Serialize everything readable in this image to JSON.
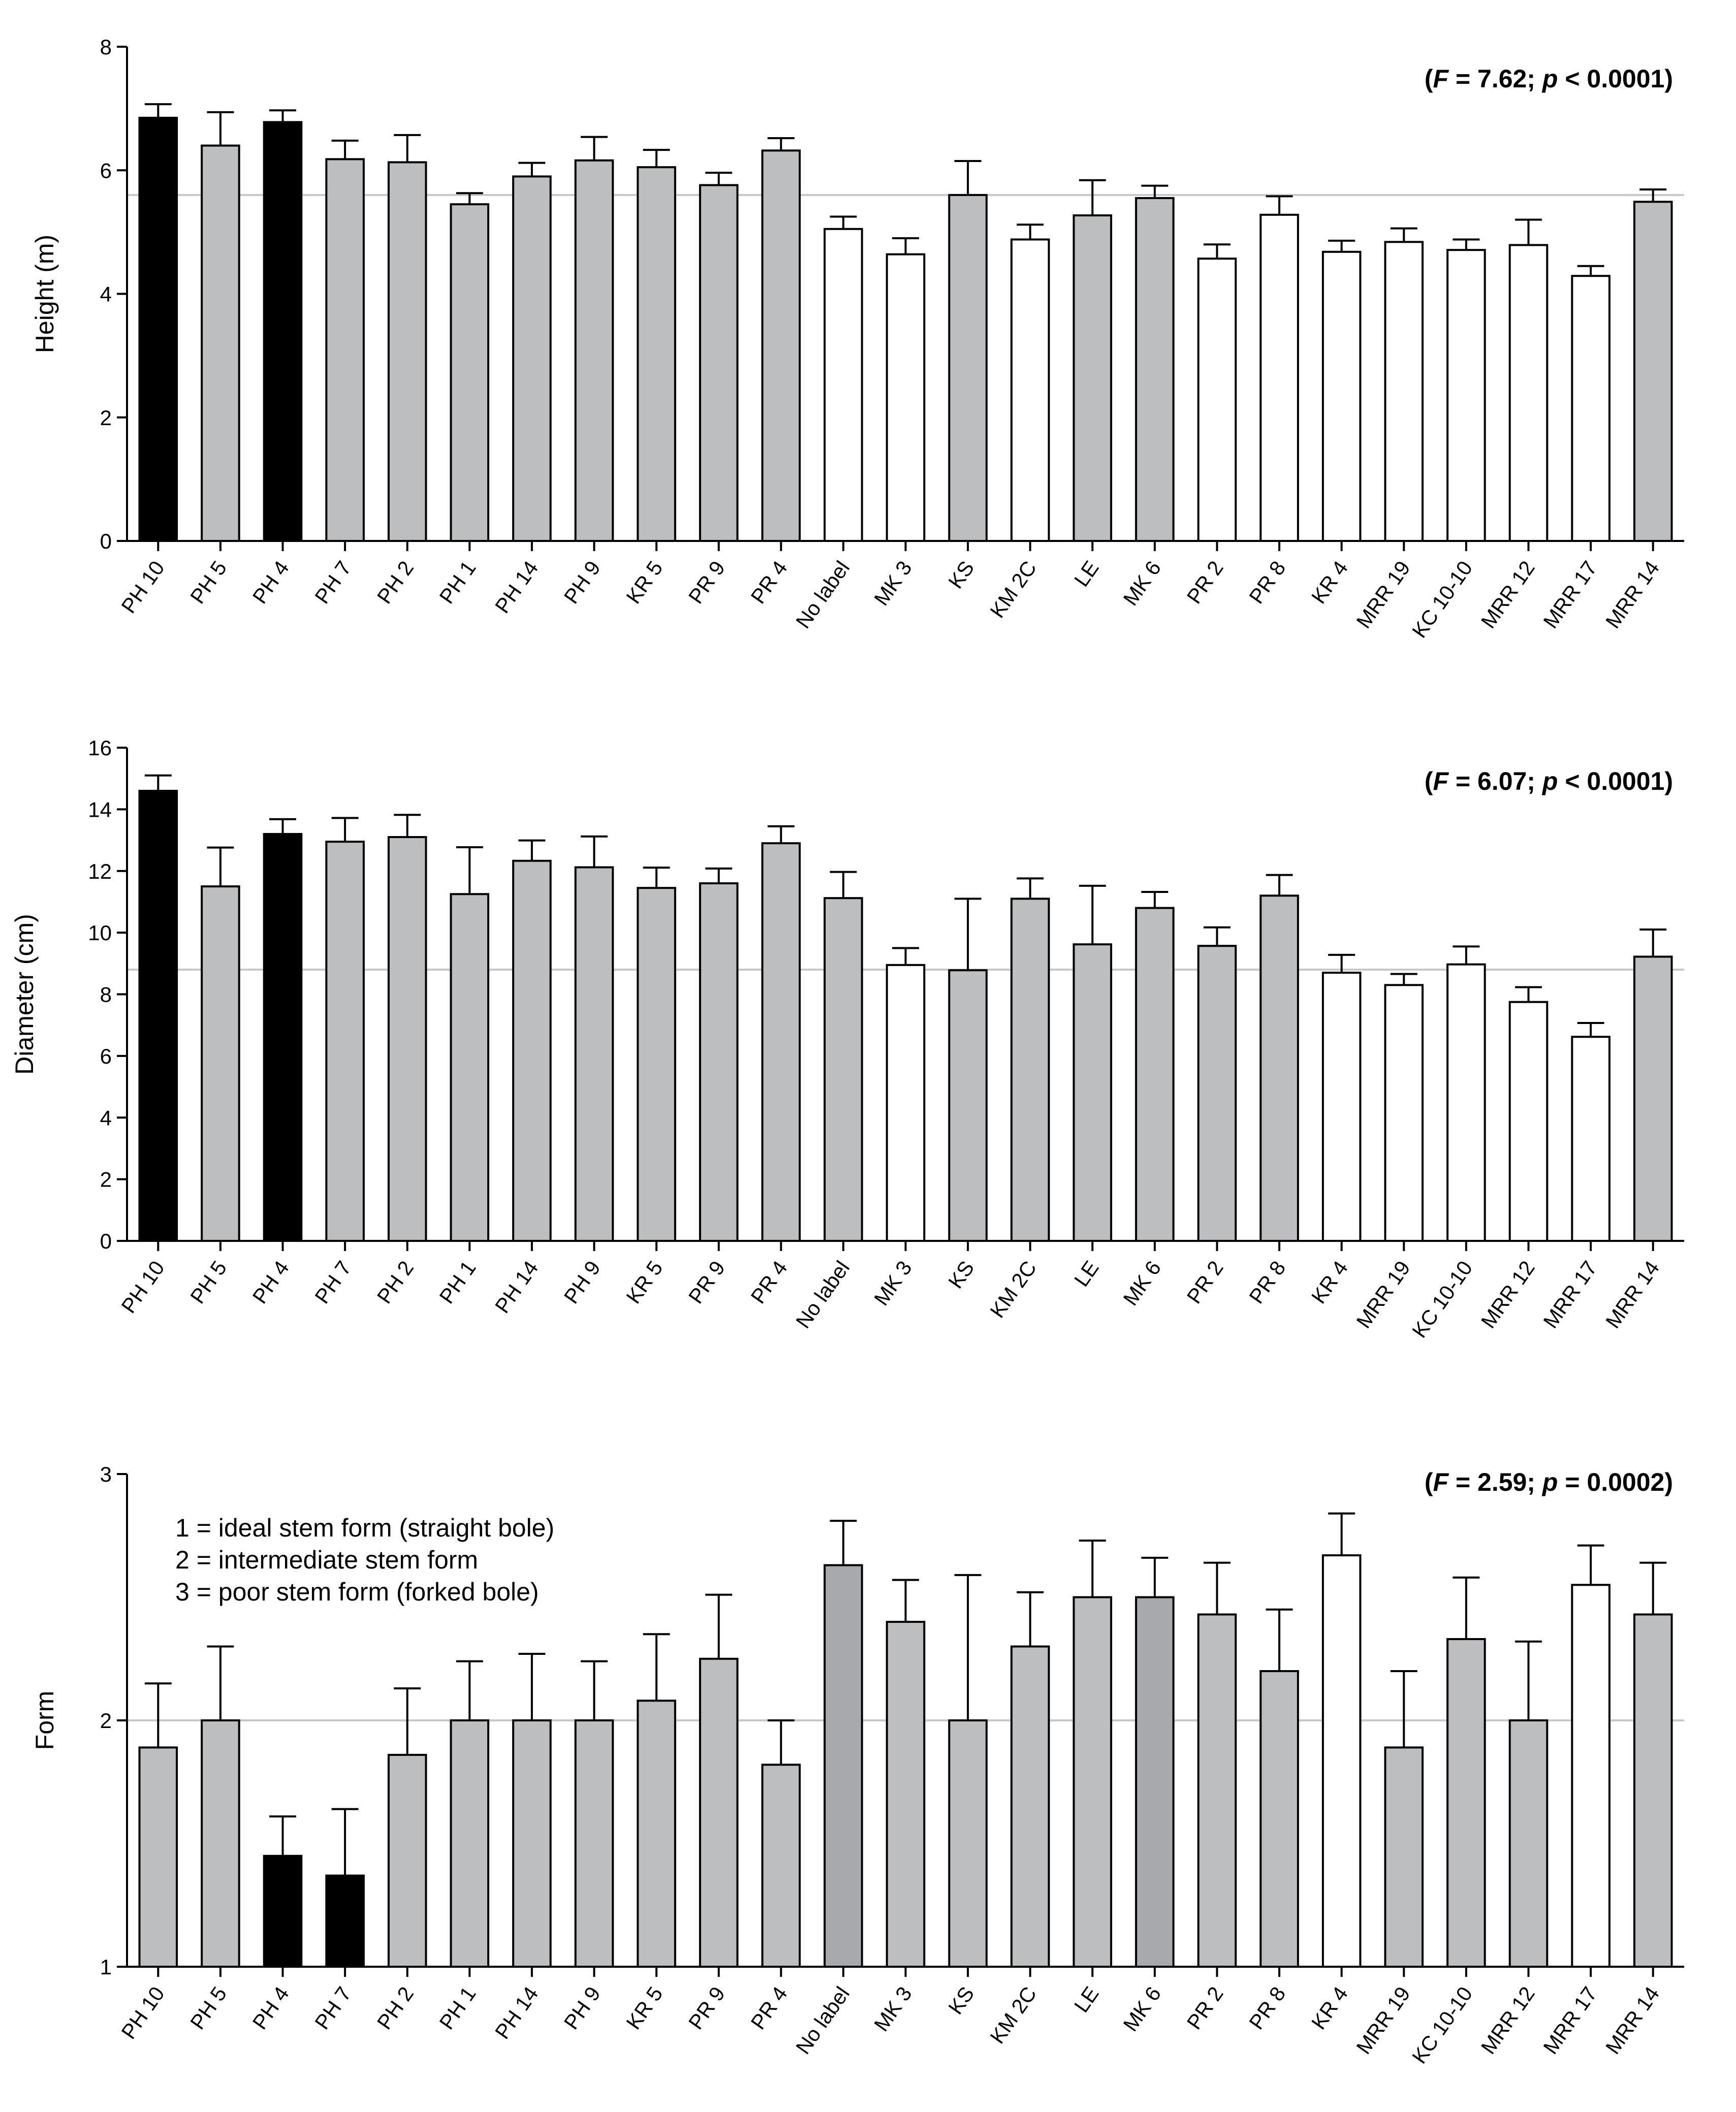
{
  "colors": {
    "black": "#000000",
    "gray": "#bcbec0",
    "dark_gray": "#a7a9ac",
    "white": "#ffffff",
    "ref_line": "#c8c8c8"
  },
  "chart_data": [
    {
      "type": "bar",
      "title": "",
      "xlabel": "",
      "ylabel": "Height (m)",
      "ylim": [
        0,
        8
      ],
      "yticks": [
        "0",
        "2",
        "4",
        "6",
        "8"
      ],
      "reference_line": 5.6,
      "stat_prefix": "(",
      "stat_f_symbol": "F",
      "stat_f_value": " = 7.62; ",
      "stat_p_symbol": "p",
      "stat_p_value": " < 0.0001)",
      "categories": [
        "PH 10",
        "PH 5",
        "PH 4",
        "PH 7",
        "PH 2",
        "PH 1",
        "PH 14",
        "PH 9",
        "KR 5",
        "PR 9",
        "PR 4",
        "No label",
        "MK 3",
        "KS",
        "KM 2C",
        "LE",
        "MK 6",
        "PR 2",
        "PR 8",
        "KR 4",
        "MRR 19",
        "KC 10-10",
        "MRR 12",
        "MRR 17",
        "MRR 14"
      ],
      "values": [
        6.85,
        6.4,
        6.78,
        6.18,
        6.13,
        5.45,
        5.9,
        6.16,
        6.05,
        5.76,
        6.32,
        5.05,
        4.64,
        5.6,
        4.88,
        5.27,
        5.55,
        4.57,
        5.28,
        4.68,
        4.84,
        4.71,
        4.79,
        4.29,
        5.49
      ],
      "errors": [
        0.22,
        0.54,
        0.19,
        0.3,
        0.44,
        0.18,
        0.22,
        0.38,
        0.28,
        0.2,
        0.2,
        0.2,
        0.26,
        0.55,
        0.24,
        0.57,
        0.2,
        0.23,
        0.3,
        0.18,
        0.22,
        0.17,
        0.41,
        0.16,
        0.2
      ],
      "fill": [
        "black",
        "gray",
        "black",
        "gray",
        "gray",
        "gray",
        "gray",
        "gray",
        "gray",
        "gray",
        "gray",
        "white",
        "white",
        "gray",
        "white",
        "gray",
        "gray",
        "white",
        "white",
        "white",
        "white",
        "white",
        "white",
        "white",
        "gray"
      ]
    },
    {
      "type": "bar",
      "title": "",
      "xlabel": "",
      "ylabel": "Diameter (cm)",
      "ylim": [
        0,
        16
      ],
      "yticks": [
        "0",
        "2",
        "4",
        "6",
        "8",
        "10",
        "12",
        "14",
        "16"
      ],
      "reference_line": 8.8,
      "stat_prefix": "(",
      "stat_f_symbol": "F",
      "stat_f_value": " = 6.07; ",
      "stat_p_symbol": "p",
      "stat_p_value": " < 0.0001)",
      "categories": [
        "PH 10",
        "PH 5",
        "PH 4",
        "PH 7",
        "PH 2",
        "PH 1",
        "PH 14",
        "PH 9",
        "KR 5",
        "PR 9",
        "PR 4",
        "No label",
        "MK 3",
        "KS",
        "KM 2C",
        "LE",
        "MK 6",
        "PR 2",
        "PR 8",
        "KR 4",
        "MRR 19",
        "KC 10-10",
        "MRR 12",
        "MRR 17",
        "MRR 14"
      ],
      "values": [
        14.6,
        11.5,
        13.2,
        12.95,
        13.1,
        11.25,
        12.33,
        12.12,
        11.45,
        11.6,
        12.9,
        11.12,
        8.95,
        8.78,
        11.1,
        9.62,
        10.8,
        9.57,
        11.2,
        8.7,
        8.3,
        8.97,
        7.75,
        6.62,
        9.22
      ],
      "errors": [
        0.5,
        1.26,
        0.48,
        0.77,
        0.72,
        1.52,
        0.66,
        1.0,
        0.66,
        0.48,
        0.55,
        0.85,
        0.55,
        2.32,
        0.66,
        1.9,
        0.52,
        0.6,
        0.67,
        0.58,
        0.36,
        0.58,
        0.48,
        0.45,
        0.88
      ],
      "fill": [
        "black",
        "gray",
        "black",
        "gray",
        "gray",
        "gray",
        "gray",
        "gray",
        "gray",
        "gray",
        "gray",
        "gray",
        "white",
        "gray",
        "gray",
        "gray",
        "gray",
        "gray",
        "gray",
        "white",
        "white",
        "white",
        "white",
        "white",
        "gray"
      ]
    },
    {
      "type": "bar",
      "title": "",
      "xlabel": "",
      "ylabel": "Form",
      "ylim": [
        1,
        3
      ],
      "yticks": [
        "1",
        "2",
        "3"
      ],
      "reference_line": 2.0,
      "stat_prefix": "(",
      "stat_f_symbol": "F",
      "stat_f_value": " = 2.59; ",
      "stat_p_symbol": "p",
      "stat_p_value": " = 0.0002)",
      "legend_lines": [
        "1 = ideal stem form (straight bole)",
        "2 = intermediate stem form",
        "3 = poor stem form (forked bole)"
      ],
      "categories": [
        "PH 10",
        "PH 5",
        "PH 4",
        "PH 7",
        "PH 2",
        "PH 1",
        "PH 14",
        "PH 9",
        "KR 5",
        "PR 9",
        "PR 4",
        "No label",
        "MK 3",
        "KS",
        "KM 2C",
        "LE",
        "MK 6",
        "PR 2",
        "PR 8",
        "KR 4",
        "MRR 19",
        "KC 10-10",
        "MRR 12",
        "MRR 17",
        "MRR 14"
      ],
      "values": [
        1.89,
        2.0,
        1.45,
        1.37,
        1.86,
        2.0,
        2.0,
        2.0,
        2.08,
        2.25,
        1.82,
        2.63,
        2.4,
        2.0,
        2.3,
        2.5,
        2.5,
        2.43,
        2.2,
        2.67,
        1.89,
        2.33,
        2.0,
        2.55,
        2.43
      ],
      "errors": [
        0.26,
        0.3,
        0.16,
        0.27,
        0.27,
        0.24,
        0.27,
        0.24,
        0.27,
        0.26,
        0.18,
        0.18,
        0.17,
        0.59,
        0.22,
        0.23,
        0.16,
        0.21,
        0.25,
        0.17,
        0.31,
        0.25,
        0.32,
        0.16,
        0.21
      ],
      "fill": [
        "gray",
        "gray",
        "black",
        "black",
        "gray",
        "gray",
        "gray",
        "gray",
        "gray",
        "gray",
        "gray",
        "dark_gray",
        "gray",
        "gray",
        "gray",
        "gray",
        "dark_gray",
        "gray",
        "gray",
        "white",
        "gray",
        "gray",
        "gray",
        "white",
        "gray"
      ]
    }
  ]
}
